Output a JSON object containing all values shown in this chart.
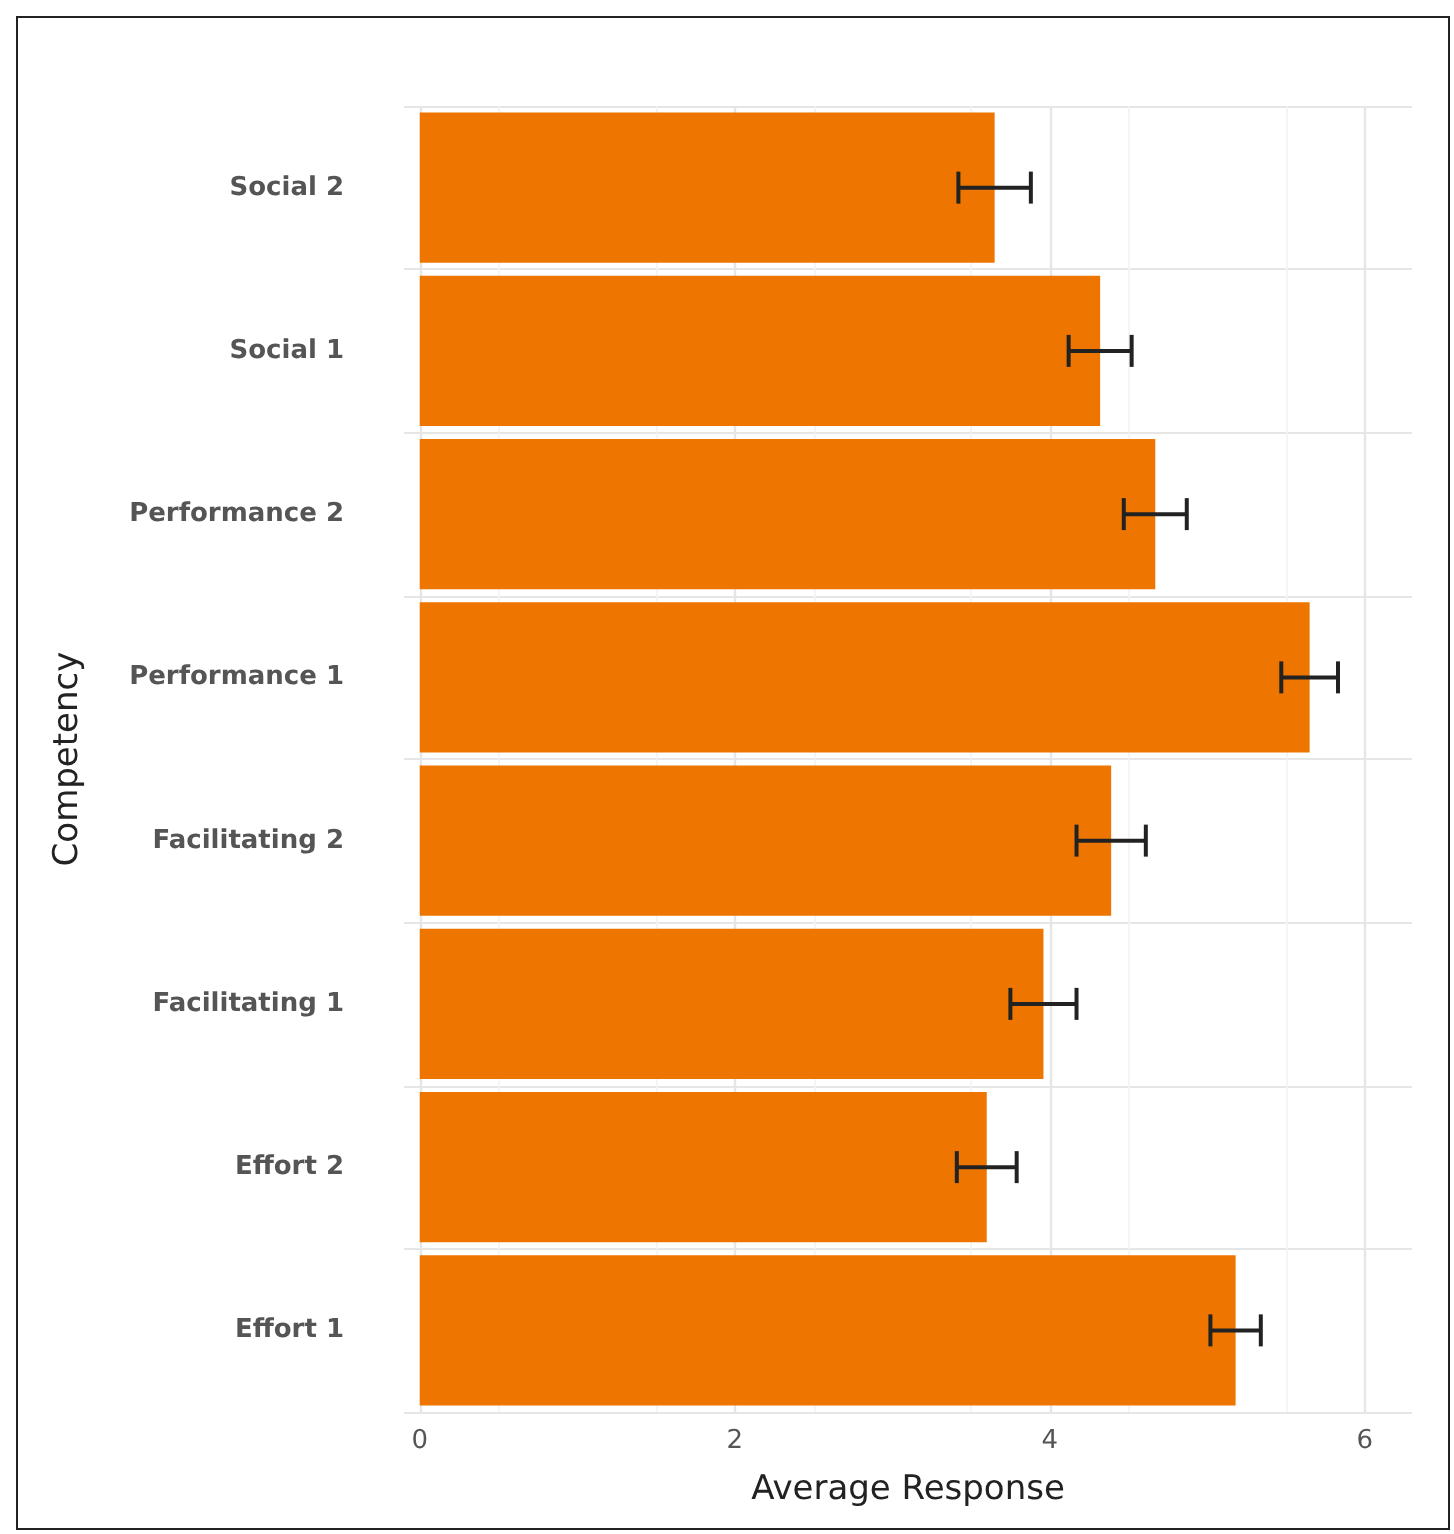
{
  "chart_data": {
    "type": "bar",
    "orientation": "horizontal",
    "xlabel": "Average Response",
    "ylabel": "Competency",
    "categories": [
      "Social 2",
      "Social 1",
      "Performance 2",
      "Performance 1",
      "Facilitating 2",
      "Facilitating 1",
      "Effort 2",
      "Effort 1"
    ],
    "values": [
      3.65,
      4.32,
      4.67,
      5.65,
      4.39,
      3.96,
      3.6,
      5.18
    ],
    "errors": [
      0.23,
      0.2,
      0.2,
      0.18,
      0.22,
      0.21,
      0.19,
      0.16
    ],
    "color": "#ee7600",
    "xlim": [
      -0.1,
      6.3
    ],
    "xticks": [
      0,
      2,
      4,
      6
    ],
    "grid": true
  }
}
